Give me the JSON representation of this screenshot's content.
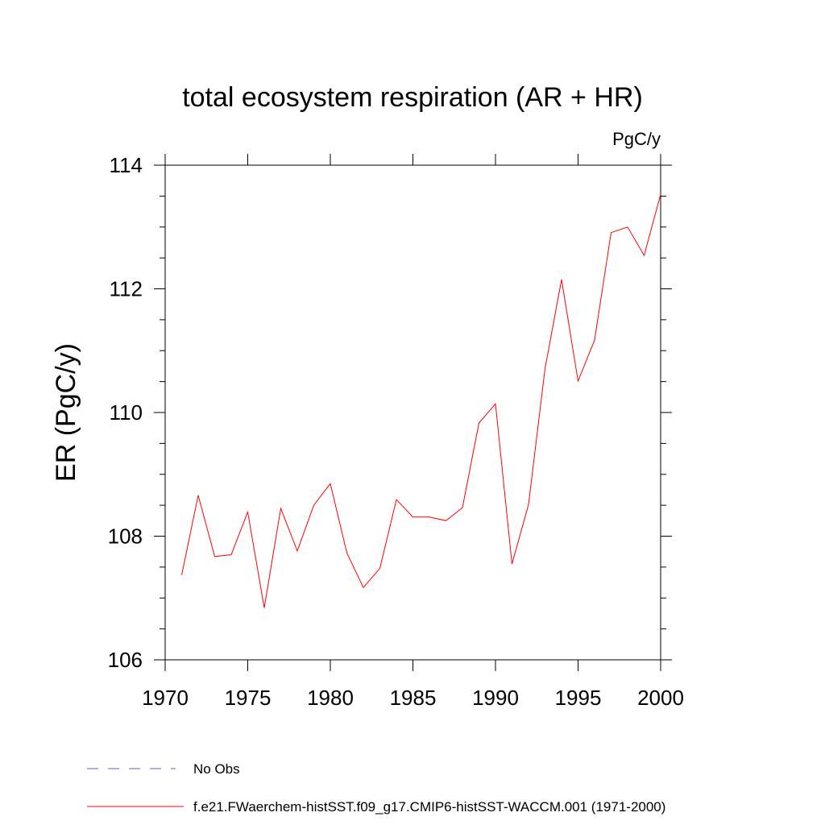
{
  "chart_data": {
    "type": "line",
    "title": "total ecosystem respiration (AR + HR)",
    "units": "PgC/y",
    "xlabel": "",
    "ylabel": "ER  (PgC/y)",
    "xlim": [
      1970,
      2000
    ],
    "ylim": [
      106,
      114
    ],
    "x_ticks": [
      1970,
      1975,
      1980,
      1985,
      1990,
      1995,
      2000
    ],
    "y_ticks": [
      106,
      108,
      110,
      112,
      114
    ],
    "grid": false,
    "legend_position": "bottom",
    "series": [
      {
        "name": "f.e21.FWaerchem-histSST.f09_g17.CMIP6-histSST-WACCM.001 (1971-2000)",
        "color": "#ff0000",
        "style": "solid",
        "x": [
          1971,
          1972,
          1973,
          1974,
          1975,
          1976,
          1977,
          1978,
          1979,
          1980,
          1981,
          1982,
          1983,
          1984,
          1985,
          1986,
          1987,
          1988,
          1989,
          1990,
          1991,
          1992,
          1993,
          1994,
          1995,
          1996,
          1997,
          1998,
          1999,
          2000
        ],
        "y": [
          107.37,
          108.66,
          107.67,
          107.7,
          108.39,
          106.84,
          108.45,
          107.76,
          108.5,
          108.85,
          107.73,
          107.17,
          107.48,
          108.59,
          108.31,
          108.31,
          108.25,
          108.46,
          109.83,
          110.14,
          107.55,
          108.51,
          110.71,
          112.15,
          110.51,
          111.17,
          112.91,
          113.0,
          112.54,
          113.53
        ]
      }
    ],
    "legend": [
      {
        "label": "No Obs",
        "color": "#6a5acd",
        "style": "dashed"
      },
      {
        "label": "f.e21.FWaerchem-histSST.f09_g17.CMIP6-histSST-WACCM.001 (1971-2000)",
        "color": "#ff0000",
        "style": "solid"
      }
    ]
  }
}
